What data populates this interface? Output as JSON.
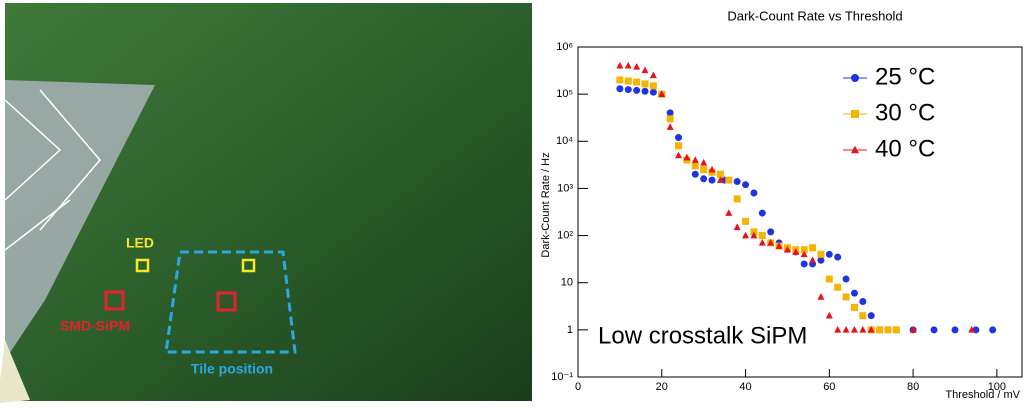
{
  "photo": {
    "labels": {
      "led": "LED",
      "smd_sipm": "SMD-SiPM",
      "tile_position": "Tile position"
    }
  },
  "chart_data": {
    "type": "scatter",
    "title": "Dark-Count Rate vs Threshold",
    "x_label": "Threshold / mV",
    "y_label": "Dark-Count Rate / Hz",
    "annotation": "Low crosstalk SiPM",
    "log_y": true,
    "legend": "upper right",
    "xlim": [
      0,
      106
    ],
    "xticks": [
      0,
      20,
      40,
      60,
      80,
      100
    ],
    "ylim": [
      0.1,
      1000000
    ],
    "yticks": [
      {
        "value": 0.1,
        "label": "10⁻¹"
      },
      1,
      10,
      {
        "value": 100,
        "label": "10²"
      },
      {
        "value": 1000,
        "label": "10³"
      },
      {
        "value": 10000,
        "label": "10⁴"
      },
      {
        "value": 100000,
        "label": "10⁵"
      },
      {
        "value": 1000000,
        "label": "10⁶"
      }
    ],
    "series": [
      {
        "name": "25 °C",
        "color": "#1f35e0",
        "marker": "circle",
        "x": [
          10,
          12,
          14,
          16,
          18,
          20,
          22,
          24,
          26,
          28,
          30,
          32,
          35,
          38,
          40,
          42,
          44,
          46,
          48,
          50,
          52,
          54,
          56,
          58,
          60,
          62,
          64,
          66,
          68,
          70,
          72,
          76,
          80,
          85,
          90,
          95,
          99
        ],
        "values": [
          130000,
          125000,
          120000,
          115000,
          110000,
          100000,
          40000,
          12000,
          4000,
          2000,
          1600,
          1500,
          1500,
          1400,
          1200,
          800,
          300,
          120,
          70,
          55,
          45,
          25,
          25,
          30,
          40,
          35,
          12,
          6,
          4,
          2,
          1,
          1,
          1,
          1,
          1,
          1,
          1
        ]
      },
      {
        "name": "30 °C",
        "color": "#f5b400",
        "marker": "square",
        "x": [
          10,
          12,
          14,
          16,
          18,
          20,
          22,
          24,
          26,
          28,
          30,
          32,
          34,
          36,
          38,
          40,
          42,
          44,
          46,
          48,
          50,
          52,
          54,
          56,
          58,
          60,
          62,
          64,
          66,
          68,
          70,
          72,
          74,
          76
        ],
        "values": [
          200000,
          190000,
          180000,
          165000,
          150000,
          100000,
          30000,
          8000,
          4000,
          3000,
          2500,
          2200,
          2000,
          1500,
          600,
          200,
          120,
          100,
          70,
          60,
          55,
          50,
          50,
          55,
          40,
          12,
          8,
          5,
          3,
          2,
          1,
          1,
          1,
          1
        ]
      },
      {
        "name": "40 °C",
        "color": "#e8111b",
        "marker": "triangle",
        "x": [
          10,
          12,
          14,
          16,
          18,
          20,
          22,
          24,
          26,
          28,
          30,
          32,
          34,
          36,
          38,
          40,
          42,
          44,
          46,
          48,
          50,
          52,
          54,
          56,
          58,
          60,
          62,
          64,
          66,
          68,
          70,
          80,
          94
        ],
        "values": [
          400000,
          400000,
          380000,
          320000,
          250000,
          100000,
          20000,
          5000,
          4500,
          4000,
          3500,
          2500,
          1500,
          300,
          150,
          100,
          100,
          70,
          70,
          60,
          50,
          45,
          40,
          30,
          5,
          2,
          1,
          1,
          1,
          1,
          1,
          1,
          1
        ]
      }
    ]
  }
}
